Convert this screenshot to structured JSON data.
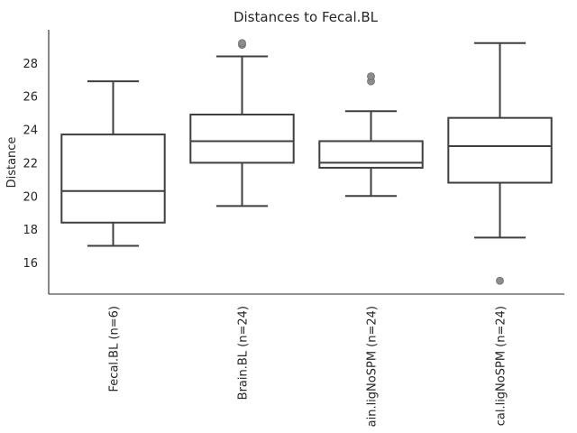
{
  "chart_data": {
    "type": "box",
    "title": "Distances to Fecal.BL",
    "xlabel": "",
    "ylabel": "Distance",
    "ylim": [
      14.1,
      30.0
    ],
    "yticks": [
      16,
      18,
      20,
      22,
      24,
      26,
      28
    ],
    "grid": false,
    "categories": [
      "Fecal.BL (n=6)",
      "Brain.BL (n=24)",
      "ain.ligNoSPM (n=24)",
      "cal.ligNoSPM (n=24)"
    ],
    "boxes": [
      {
        "whisker_low": 17.0,
        "q1": 18.4,
        "median": 20.3,
        "q3": 23.7,
        "whisker_high": 26.9,
        "outliers": []
      },
      {
        "whisker_low": 19.4,
        "q1": 22.0,
        "median": 23.3,
        "q3": 24.9,
        "whisker_high": 28.4,
        "outliers": [
          29.1,
          29.2
        ]
      },
      {
        "whisker_low": 20.0,
        "q1": 21.7,
        "median": 22.0,
        "q3": 23.3,
        "whisker_high": 25.1,
        "outliers": [
          26.9,
          27.2
        ]
      },
      {
        "whisker_low": 17.5,
        "q1": 20.8,
        "median": 23.0,
        "q3": 24.7,
        "whisker_high": 29.2,
        "outliers": [
          14.9
        ]
      }
    ],
    "colors": {
      "line": "#3f3f3f",
      "box_fill": "#ffffff",
      "outlier": "#8c8c8c",
      "axis": "#262626"
    }
  }
}
